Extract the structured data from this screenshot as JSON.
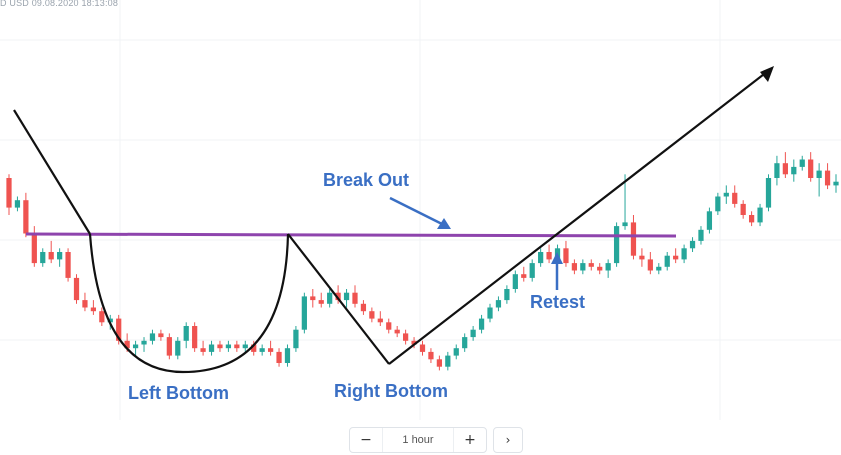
{
  "header": {
    "symbol_text": "D USD 09.08.2020 18:13:08"
  },
  "toolbar": {
    "zoom_out_label": "−",
    "interval_label": "1 hour",
    "zoom_in_label": "+",
    "next_label": "›"
  },
  "annotations": {
    "break_out": "Break Out",
    "retest": "Retest",
    "left_bottom": "Left Bottom",
    "right_bottom": "Right Bottom"
  },
  "colors": {
    "bullish": "#26a69a",
    "bearish": "#ef5350",
    "neckline": "#8e44ad",
    "annotation_text": "#3a6fc4",
    "pattern_lines": "#111111"
  },
  "chart_data": {
    "type": "candlestick",
    "title": "",
    "pattern": "cup and handle",
    "candles_ohlc": [
      [
        60,
        61,
        50,
        52
      ],
      [
        52,
        55,
        51,
        54
      ],
      [
        54,
        56,
        44,
        45
      ],
      [
        45,
        47,
        36,
        37
      ],
      [
        37,
        41,
        36,
        40
      ],
      [
        40,
        43,
        37,
        38
      ],
      [
        38,
        41,
        36,
        40
      ],
      [
        40,
        41,
        32,
        33
      ],
      [
        33,
        34,
        26,
        27
      ],
      [
        27,
        29,
        24,
        25
      ],
      [
        25,
        27,
        23,
        24
      ],
      [
        24,
        25,
        20,
        21
      ],
      [
        21,
        23,
        19,
        22
      ],
      [
        22,
        23,
        15,
        16
      ],
      [
        16,
        18,
        13,
        14
      ],
      [
        14,
        16,
        12,
        15
      ],
      [
        15,
        17,
        13,
        16
      ],
      [
        16,
        19,
        15,
        18
      ],
      [
        18,
        19,
        16,
        17
      ],
      [
        17,
        18,
        11,
        12
      ],
      [
        12,
        17,
        11,
        16
      ],
      [
        16,
        21,
        14,
        20
      ],
      [
        20,
        21,
        13,
        14
      ],
      [
        14,
        16,
        12,
        13
      ],
      [
        13,
        16,
        12,
        15
      ],
      [
        15,
        16,
        13,
        14
      ],
      [
        14,
        16,
        13,
        15
      ],
      [
        15,
        16,
        13,
        14
      ],
      [
        14,
        16,
        13,
        15
      ],
      [
        15,
        16,
        12,
        13
      ],
      [
        13,
        15,
        12,
        14
      ],
      [
        14,
        16,
        12,
        13
      ],
      [
        13,
        14,
        9,
        10
      ],
      [
        10,
        15,
        9,
        14
      ],
      [
        14,
        20,
        13,
        19
      ],
      [
        19,
        29,
        18,
        28
      ],
      [
        28,
        30,
        25,
        27
      ],
      [
        27,
        29,
        25,
        26
      ],
      [
        26,
        30,
        25,
        29
      ],
      [
        29,
        31,
        26,
        27
      ],
      [
        27,
        30,
        25,
        29
      ],
      [
        29,
        31,
        25,
        26
      ],
      [
        26,
        27,
        23,
        24
      ],
      [
        24,
        25,
        21,
        22
      ],
      [
        22,
        24,
        20,
        21
      ],
      [
        21,
        22,
        18,
        19
      ],
      [
        19,
        20,
        17,
        18
      ],
      [
        18,
        19,
        15,
        16
      ],
      [
        16,
        17,
        14,
        15
      ],
      [
        15,
        16,
        12,
        13
      ],
      [
        13,
        14,
        10,
        11
      ],
      [
        11,
        12,
        8,
        9
      ],
      [
        9,
        13,
        8,
        12
      ],
      [
        12,
        15,
        11,
        14
      ],
      [
        14,
        18,
        13,
        17
      ],
      [
        17,
        20,
        16,
        19
      ],
      [
        19,
        23,
        18,
        22
      ],
      [
        22,
        26,
        21,
        25
      ],
      [
        25,
        28,
        24,
        27
      ],
      [
        27,
        31,
        26,
        30
      ],
      [
        30,
        35,
        29,
        34
      ],
      [
        34,
        36,
        32,
        33
      ],
      [
        33,
        38,
        32,
        37
      ],
      [
        37,
        41,
        36,
        40
      ],
      [
        40,
        42,
        37,
        38
      ],
      [
        38,
        42,
        37,
        41
      ],
      [
        41,
        43,
        36,
        37
      ],
      [
        37,
        38,
        34,
        35
      ],
      [
        35,
        38,
        34,
        37
      ],
      [
        37,
        38,
        35,
        36
      ],
      [
        36,
        37,
        34,
        35
      ],
      [
        35,
        38,
        33,
        37
      ],
      [
        37,
        48,
        36,
        47
      ],
      [
        47,
        61,
        46,
        48
      ],
      [
        48,
        50,
        38,
        39
      ],
      [
        39,
        41,
        36,
        38
      ],
      [
        38,
        40,
        34,
        35
      ],
      [
        35,
        37,
        34,
        36
      ],
      [
        36,
        40,
        35,
        39
      ],
      [
        39,
        41,
        37,
        38
      ],
      [
        38,
        42,
        37,
        41
      ],
      [
        41,
        44,
        40,
        43
      ],
      [
        43,
        47,
        42,
        46
      ],
      [
        46,
        52,
        45,
        51
      ],
      [
        51,
        56,
        50,
        55
      ],
      [
        55,
        58,
        53,
        56
      ],
      [
        56,
        58,
        52,
        53
      ],
      [
        53,
        54,
        49,
        50
      ],
      [
        50,
        51,
        47,
        48
      ],
      [
        48,
        53,
        47,
        52
      ],
      [
        52,
        61,
        51,
        60
      ],
      [
        60,
        66,
        58,
        64
      ],
      [
        64,
        67,
        60,
        61
      ],
      [
        61,
        65,
        59,
        63
      ],
      [
        63,
        66,
        62,
        65
      ],
      [
        65,
        67,
        59,
        60
      ],
      [
        60,
        64,
        55,
        62
      ],
      [
        62,
        64,
        57,
        58
      ],
      [
        58,
        61,
        56,
        59
      ]
    ]
  }
}
